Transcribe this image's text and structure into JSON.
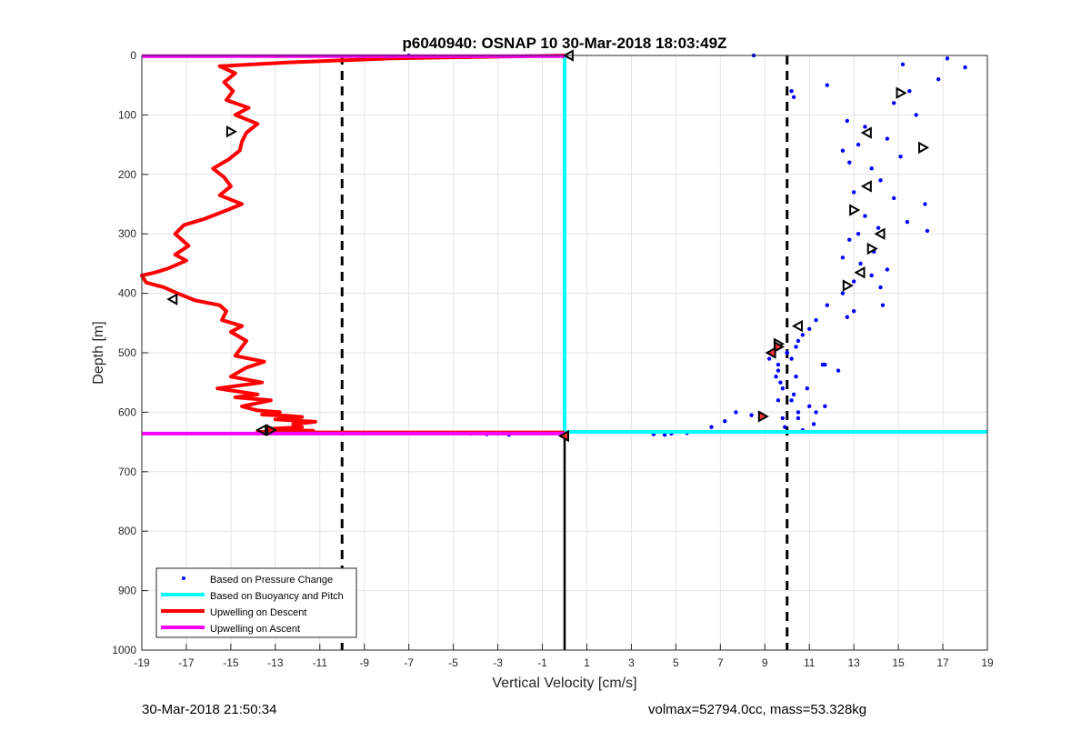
{
  "chart_data": {
    "type": "scatter",
    "title": "p6040940: OSNAP 10 30-Mar-2018 18:03:49Z",
    "xlabel": "Vertical Velocity [cm/s]",
    "ylabel": "Depth [m]",
    "xlim": [
      -19,
      19
    ],
    "ylim": [
      0,
      1000
    ],
    "y_reversed": true,
    "grid": true,
    "xticks": [
      -19,
      -17,
      -15,
      -13,
      -11,
      -9,
      -7,
      -5,
      -3,
      -1,
      1,
      3,
      5,
      7,
      9,
      11,
      13,
      15,
      17,
      19
    ],
    "yticks": [
      0,
      100,
      200,
      300,
      400,
      500,
      600,
      700,
      800,
      900,
      1000
    ],
    "legend_position": "bottom-left",
    "legend": [
      {
        "label": "Based on Pressure Change",
        "color": "#0000ff",
        "style": "dot"
      },
      {
        "label": "Based on Buoyancy and Pitch",
        "color": "#00ffff",
        "style": "line"
      },
      {
        "label": "Upwelling on Descent",
        "color": "#ff0000",
        "style": "line"
      },
      {
        "label": "Upwelling on Ascent",
        "color": "#ff00ff",
        "style": "line"
      }
    ],
    "series": [
      {
        "name": "Based on Pressure Change",
        "kind": "scatter",
        "color": "#0000ff",
        "x": [
          8.5,
          17.2,
          18,
          16.8,
          15.2,
          15.5,
          14.8,
          15.8,
          12.7,
          13.5,
          11.8,
          10.2,
          10.3,
          14.5,
          13.2,
          12.5,
          15.1,
          12.8,
          13.8,
          14.2,
          13.0,
          14.8,
          16.2,
          13.5,
          15.4,
          14.1,
          13.2,
          12.8,
          13.9,
          12.5,
          13.3,
          14.5,
          16.3,
          13.8,
          13.0,
          14.2,
          12.5,
          14.3,
          11.8,
          13.0,
          12.7,
          11.3,
          11.0,
          10.7,
          10.5,
          10.0,
          9.6,
          9.5,
          9.8,
          9.6,
          10.2,
          11.7,
          12.3,
          9.7,
          10.3,
          11.0,
          10.5,
          9.8,
          11.2,
          10.7,
          11.7,
          10.4,
          10.9,
          9.6,
          10.2,
          11.3,
          10.5,
          9.9,
          11.6,
          10.4,
          10.0,
          9.2,
          8.4,
          7.7,
          7.2,
          6.6,
          5.5,
          4.8,
          4.5,
          4.0,
          -2.5,
          -3.0,
          -3.5,
          -4.2,
          -5.2,
          -8.3,
          -7.0
        ],
        "y": [
          0,
          5,
          20,
          40,
          15,
          60,
          80,
          100,
          110,
          120,
          50,
          60,
          70,
          140,
          150,
          160,
          170,
          180,
          190,
          210,
          230,
          240,
          250,
          270,
          280,
          290,
          300,
          310,
          330,
          340,
          350,
          360,
          295,
          370,
          380,
          390,
          400,
          420,
          420,
          430,
          440,
          445,
          460,
          470,
          480,
          500,
          520,
          540,
          560,
          580,
          510,
          520,
          530,
          550,
          570,
          590,
          600,
          610,
          620,
          630,
          590,
          540,
          560,
          530,
          580,
          600,
          610,
          625,
          520,
          490,
          500,
          510,
          605,
          600,
          615,
          625,
          635,
          636,
          638,
          637,
          638,
          636,
          637,
          636,
          635,
          635,
          0
        ]
      },
      {
        "name": "Based on Buoyancy and Pitch",
        "kind": "line",
        "color": "#00ffff",
        "x": [
          0,
          0,
          19
        ],
        "y": [
          0,
          633,
          633
        ]
      },
      {
        "name": "Upwelling on Descent",
        "kind": "line",
        "color": "#ff0000",
        "x": [
          0,
          -7.8,
          -12.5,
          -15.5,
          -14.8,
          -15.3,
          -14.9,
          -15.2,
          -14.2,
          -14.8,
          -13.8,
          -14.3,
          -14.5,
          -14.6,
          -15.1,
          -15.8,
          -15.3,
          -15.0,
          -15.5,
          -14.5,
          -15.3,
          -16.2,
          -17.1,
          -17.5,
          -16.9,
          -17.5,
          -17.0,
          -17.8,
          -18.4,
          -19.0,
          -18.8,
          -18.0,
          -17.4,
          -16.6,
          -15.5,
          -15.2,
          -15.4,
          -14.5,
          -15.0,
          -14.3,
          -14.6,
          -14.8,
          -13.5,
          -14.3,
          -15.0,
          -13.6,
          -15.6,
          -13.8,
          -14.8,
          -13.2,
          -14.5,
          -13.8,
          -12.8,
          -13.6,
          -12.5,
          -11.8,
          -12.3,
          -13.0,
          -11.2,
          -12.2,
          -11.8,
          -13.3,
          -12.8,
          -11.3,
          -13.2,
          -12.5,
          -13.8,
          -13.5,
          -13.8,
          -12.8,
          0
        ],
        "y": [
          0,
          5,
          12,
          18,
          30,
          45,
          60,
          75,
          88,
          100,
          115,
          130,
          145,
          160,
          175,
          190,
          205,
          220,
          235,
          250,
          262,
          275,
          285,
          300,
          320,
          335,
          345,
          358,
          365,
          370,
          382,
          390,
          400,
          412,
          420,
          430,
          445,
          455,
          465,
          480,
          495,
          505,
          515,
          525,
          540,
          550,
          560,
          570,
          575,
          580,
          590,
          597,
          600,
          604,
          606,
          608,
          610,
          612,
          616,
          620,
          625,
          628,
          630,
          631,
          632,
          633,
          633,
          634,
          634,
          634,
          634
        ]
      },
      {
        "name": "Upwelling on Ascent",
        "kind": "line",
        "color": "#ff00ff",
        "x": [
          -19,
          0
        ],
        "y": [
          636,
          636
        ],
        "x2": [
          -19,
          0
        ],
        "y2": [
          1,
          1
        ]
      },
      {
        "name": "",
        "kind": "markers",
        "color": "#000000",
        "x": [
          15.1,
          13.6,
          16.1,
          13.6,
          13.0,
          14.2,
          13.8,
          13.3,
          12.7,
          10.5,
          9.6,
          0.2,
          -15.0,
          -17.6,
          -13.2,
          -13.6,
          9.6,
          9.3,
          8.9,
          0
        ],
        "y": [
          63,
          130,
          155,
          220,
          260,
          300,
          325,
          365,
          387,
          455,
          485,
          0,
          128,
          410,
          630,
          630,
          490,
          500,
          607,
          640
        ]
      }
    ],
    "reference_lines": [
      {
        "orientation": "vertical",
        "x": -10,
        "style": "dashed",
        "color": "#000000"
      },
      {
        "orientation": "vertical",
        "x": 10,
        "style": "dashed",
        "color": "#000000"
      },
      {
        "orientation": "vertical",
        "x": 0,
        "y_from": 640,
        "y_to": 1000,
        "style": "solid",
        "color": "#000000"
      }
    ]
  },
  "footer": {
    "timestamp": "30-Mar-2018 21:50:34",
    "summary": "volmax=52794.0cc, mass=53.328kg"
  }
}
